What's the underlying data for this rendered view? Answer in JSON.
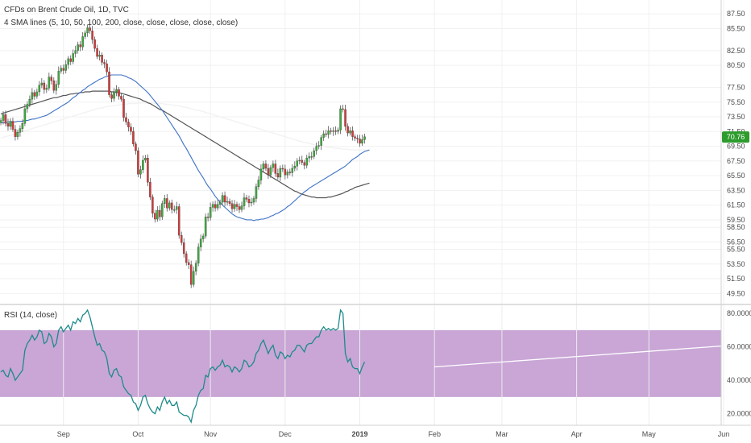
{
  "colors": {
    "up": "#3cab3c",
    "down": "#d43a3a",
    "wick": "#555555",
    "sma50": "#3e73c6",
    "sma100": "#555555",
    "sma200": "#f2f2f2",
    "rsi": "#1e8a8a",
    "rsi_band": "#c9a6d6",
    "trendline": "#ffffff",
    "price_tag": "#2d9c2d"
  },
  "header": {
    "title": "CFDs on Brent Crude Oil, 1D, TVC",
    "indicator": "4 SMA lines (5, 10, 50, 100, 200, close, close, close, close, close)",
    "rsi_label": "RSI (14, close)"
  },
  "chart_data": [
    {
      "type": "candlestick",
      "title": "CFDs on Brent Crude Oil, 1D, TVC",
      "ylim": [
        48.0,
        88.5
      ],
      "y_ticks": [
        "87.50",
        "85.50",
        "82.50",
        "80.50",
        "77.50",
        "75.50",
        "73.50",
        "71.50",
        "69.50",
        "67.50",
        "65.50",
        "63.50",
        "61.50",
        "59.50",
        "58.50",
        "56.50",
        "55.50",
        "53.50",
        "51.50",
        "49.50"
      ],
      "y_tick_values": [
        87.5,
        85.5,
        82.5,
        80.5,
        77.5,
        75.5,
        73.5,
        71.5,
        69.5,
        67.5,
        65.5,
        63.5,
        61.5,
        59.5,
        58.5,
        56.5,
        55.5,
        53.5,
        51.5,
        49.5
      ],
      "x_ticks": [
        "Sep",
        "Oct",
        "Nov",
        "Dec",
        "2019",
        "Feb",
        "Mar",
        "Apr",
        "May",
        "Jun"
      ],
      "x_tick_days": [
        26,
        57,
        87,
        118,
        149,
        180,
        208,
        239,
        269,
        300
      ],
      "last_price": "70.76",
      "closes": [
        73.0,
        73.8,
        72.6,
        72.2,
        72.9,
        71.8,
        70.8,
        71.4,
        71.9,
        72.6,
        74.6,
        75.2,
        75.9,
        76.8,
        76.3,
        76.9,
        77.8,
        78.1,
        77.2,
        77.4,
        78.9,
        78.4,
        77.1,
        77.9,
        79.7,
        80.1,
        79.8,
        80.6,
        81.4,
        81.0,
        82.1,
        82.5,
        83.3,
        83.0,
        84.4,
        84.9,
        85.6,
        85.2,
        84.0,
        82.8,
        81.7,
        81.9,
        80.9,
        80.7,
        79.6,
        76.5,
        76.0,
        76.9,
        77.2,
        76.3,
        75.9,
        73.4,
        72.8,
        72.1,
        71.5,
        69.8,
        68.9,
        65.7,
        66.3,
        67.6,
        67.9,
        64.6,
        62.6,
        60.4,
        59.6,
        60.8,
        59.9,
        61.7,
        62.4,
        61.1,
        61.8,
        60.9,
        60.9,
        61.3,
        57.4,
        56.4,
        54.9,
        53.7,
        53.4,
        50.7,
        52.5,
        53.6,
        55.8,
        56.9,
        57.3,
        59.9,
        59.8,
        61.2,
        61.6,
        61.1,
        61.6,
        61.9,
        62.8,
        61.9,
        62.0,
        61.7,
        61.0,
        61.6,
        61.3,
        60.9,
        61.4,
        62.5,
        62.3,
        61.8,
        61.9,
        62.4,
        64.0,
        64.9,
        66.4,
        67.1,
        66.5,
        65.6,
        66.6,
        67.1,
        65.8,
        65.3,
        66.5,
        66.4,
        65.6,
        66.0,
        65.9,
        66.5,
        66.8,
        67.5,
        67.6,
        67.3,
        66.9,
        67.9,
        68.1,
        68.1,
        68.9,
        69.5,
        69.6,
        70.7,
        71.2,
        71.1,
        71.6,
        71.5,
        71.6,
        71.5,
        71.7,
        74.6,
        74.5,
        72.2,
        71.3,
        71.6,
        70.8,
        70.6,
        70.5,
        69.9,
        70.4,
        70.8
      ],
      "sma50": [
        72.7,
        72.7,
        72.7,
        72.8,
        72.8,
        72.8,
        72.8,
        72.9,
        72.9,
        72.9,
        73.0,
        73.0,
        73.1,
        73.2,
        73.2,
        73.3,
        73.4,
        73.5,
        73.6,
        73.7,
        73.9,
        74.1,
        74.3,
        74.5,
        74.7,
        74.9,
        75.1,
        75.3,
        75.5,
        75.8,
        76.1,
        76.3,
        76.6,
        76.8,
        77.1,
        77.3,
        77.6,
        77.8,
        78.0,
        78.2,
        78.4,
        78.6,
        78.7,
        78.9,
        79.0,
        79.1,
        79.2,
        79.2,
        79.2,
        79.2,
        79.2,
        79.1,
        79.0,
        78.8,
        78.7,
        78.5,
        78.3,
        78.0,
        77.7,
        77.4,
        77.1,
        76.8,
        76.4,
        76.0,
        75.6,
        75.2,
        74.8,
        74.4,
        73.9,
        73.4,
        72.9,
        72.4,
        71.9,
        71.4,
        70.9,
        70.3,
        69.7,
        69.2,
        68.6,
        68.0,
        67.4,
        66.8,
        66.2,
        65.7,
        65.2,
        64.6,
        64.1,
        63.7,
        63.2,
        62.7,
        62.3,
        61.9,
        61.5,
        61.2,
        60.9,
        60.6,
        60.3,
        60.1,
        59.9,
        59.8,
        59.7,
        59.6,
        59.5,
        59.5,
        59.5,
        59.4,
        59.5,
        59.5,
        59.6,
        59.6,
        59.7,
        59.8,
        60.0,
        60.1,
        60.3,
        60.4,
        60.6,
        60.8,
        61.0,
        61.3,
        61.5,
        61.8,
        62.1,
        62.4,
        62.7,
        63.0,
        63.3,
        63.5,
        63.8,
        64.0,
        64.2,
        64.4,
        64.6,
        64.8,
        65.0,
        65.2,
        65.4,
        65.6,
        65.8,
        66.0,
        66.2,
        66.4,
        66.6,
        66.8,
        67.1,
        67.4,
        67.7,
        67.9,
        68.1,
        68.4,
        68.6,
        68.8,
        68.9,
        69.0
      ],
      "sma100": [
        73.9,
        74.0,
        74.1,
        74.2,
        74.3,
        74.4,
        74.5,
        74.6,
        74.7,
        74.8,
        74.9,
        75.0,
        75.1,
        75.2,
        75.3,
        75.4,
        75.5,
        75.6,
        75.7,
        75.8,
        75.9,
        76.0,
        76.1,
        76.1,
        76.2,
        76.3,
        76.4,
        76.4,
        76.5,
        76.6,
        76.6,
        76.7,
        76.7,
        76.8,
        76.8,
        76.9,
        76.9,
        76.9,
        77.0,
        77.0,
        77.0,
        77.0,
        77.0,
        77.0,
        77.0,
        77.0,
        76.9,
        76.9,
        76.8,
        76.8,
        76.7,
        76.6,
        76.5,
        76.4,
        76.3,
        76.2,
        76.1,
        76.0,
        75.9,
        75.7,
        75.6,
        75.4,
        75.3,
        75.1,
        74.9,
        74.7,
        74.5,
        74.4,
        74.2,
        74.0,
        73.8,
        73.6,
        73.4,
        73.2,
        73.0,
        72.8,
        72.6,
        72.4,
        72.2,
        72.0,
        71.8,
        71.6,
        71.4,
        71.2,
        71.0,
        70.8,
        70.6,
        70.4,
        70.2,
        70.0,
        69.8,
        69.6,
        69.4,
        69.2,
        69.0,
        68.8,
        68.6,
        68.4,
        68.2,
        68.0,
        67.8,
        67.6,
        67.4,
        67.2,
        67.0,
        66.8,
        66.6,
        66.4,
        66.2,
        66.0,
        65.8,
        65.6,
        65.4,
        65.2,
        65.0,
        64.8,
        64.6,
        64.4,
        64.2,
        64.0,
        63.8,
        63.6,
        63.4,
        63.3,
        63.1,
        63.0,
        62.9,
        62.8,
        62.7,
        62.6,
        62.6,
        62.5,
        62.5,
        62.5,
        62.5,
        62.5,
        62.6,
        62.6,
        62.7,
        62.8,
        62.9,
        63.0,
        63.1,
        63.3,
        63.4,
        63.6,
        63.7,
        63.9,
        64.0,
        64.1,
        64.2,
        64.3,
        64.4,
        64.5
      ],
      "sma200": [
        70.6,
        70.7,
        70.8,
        70.9,
        71.0,
        71.1,
        71.2,
        71.3,
        71.4,
        71.5,
        71.6,
        71.7,
        71.8,
        71.9,
        72.0,
        72.1,
        72.2,
        72.3,
        72.4,
        72.5,
        72.6,
        72.7,
        72.8,
        72.9,
        73.0,
        73.1,
        73.2,
        73.3,
        73.4,
        73.5,
        73.6,
        73.7,
        73.8,
        73.9,
        74.0,
        74.1,
        74.2,
        74.3,
        74.4,
        74.5,
        74.6,
        74.7,
        74.7,
        74.8,
        74.9,
        74.9,
        75.0,
        75.0,
        75.1,
        75.1,
        75.2,
        75.2,
        75.2,
        75.3,
        75.3,
        75.3,
        75.3,
        75.3,
        75.4,
        75.4,
        75.4,
        75.4,
        75.4,
        75.4,
        75.3,
        75.3,
        75.3,
        75.3,
        75.2,
        75.2,
        75.2,
        75.1,
        75.1,
        75.0,
        75.0,
        74.9,
        74.8,
        74.8,
        74.7,
        74.6,
        74.5,
        74.4,
        74.4,
        74.3,
        74.2,
        74.1,
        74.0,
        73.9,
        73.8,
        73.7,
        73.6,
        73.5,
        73.4,
        73.3,
        73.2,
        73.1,
        73.0,
        72.9,
        72.8,
        72.7,
        72.6,
        72.5,
        72.4,
        72.3,
        72.2,
        72.1,
        72.0,
        71.9,
        71.8,
        71.7,
        71.6,
        71.5,
        71.4,
        71.3,
        71.2,
        71.1,
        71.0,
        70.9,
        70.8,
        70.7,
        70.6,
        70.5,
        70.4,
        70.3,
        70.2,
        70.1,
        70.0,
        70.0,
        69.9,
        69.8,
        69.7,
        69.7,
        69.6,
        69.5,
        69.5,
        69.4,
        69.4,
        69.3,
        69.3,
        69.2,
        69.2,
        69.2,
        69.1,
        69.1,
        69.1,
        69.0,
        69.0,
        69.0,
        69.0,
        69.0,
        69.0,
        69.0,
        69.0,
        69.0
      ]
    },
    {
      "type": "line",
      "title": "RSI (14, close)",
      "ylim": [
        15,
        82
      ],
      "y_ticks": [
        "80.0000",
        "60.0000",
        "40.0000",
        "20.0000"
      ],
      "y_tick_values": [
        80,
        60,
        40,
        20
      ],
      "band": [
        30,
        70
      ],
      "rsi": [
        45,
        46,
        43,
        42,
        47,
        44,
        40,
        42,
        44,
        46,
        58,
        62,
        64,
        67,
        64,
        66,
        70,
        69,
        62,
        63,
        68,
        66,
        60,
        62,
        70,
        72,
        69,
        71,
        73,
        70,
        75,
        74,
        77,
        75,
        79,
        80,
        82,
        78,
        72,
        66,
        61,
        62,
        58,
        57,
        53,
        44,
        42,
        46,
        47,
        43,
        42,
        36,
        34,
        32,
        31,
        27,
        26,
        22,
        25,
        30,
        31,
        26,
        23,
        21,
        20,
        24,
        22,
        27,
        30,
        26,
        28,
        25,
        25,
        27,
        21,
        20,
        19,
        19,
        18,
        15,
        22,
        25,
        31,
        34,
        35,
        43,
        42,
        47,
        48,
        46,
        48,
        49,
        52,
        48,
        49,
        48,
        45,
        48,
        47,
        45,
        47,
        52,
        51,
        48,
        49,
        51,
        56,
        58,
        62,
        64,
        60,
        56,
        59,
        61,
        55,
        53,
        57,
        56,
        53,
        55,
        54,
        57,
        58,
        61,
        61,
        59,
        57,
        61,
        62,
        62,
        64,
        66,
        66,
        70,
        72,
        70,
        71,
        70,
        71,
        70,
        71,
        82,
        80,
        56,
        51,
        53,
        48,
        47,
        47,
        44,
        48,
        51
      ],
      "trendline": {
        "start_day": 180,
        "start_value": 48,
        "end_day": 325,
        "end_value": 60.5
      }
    }
  ]
}
